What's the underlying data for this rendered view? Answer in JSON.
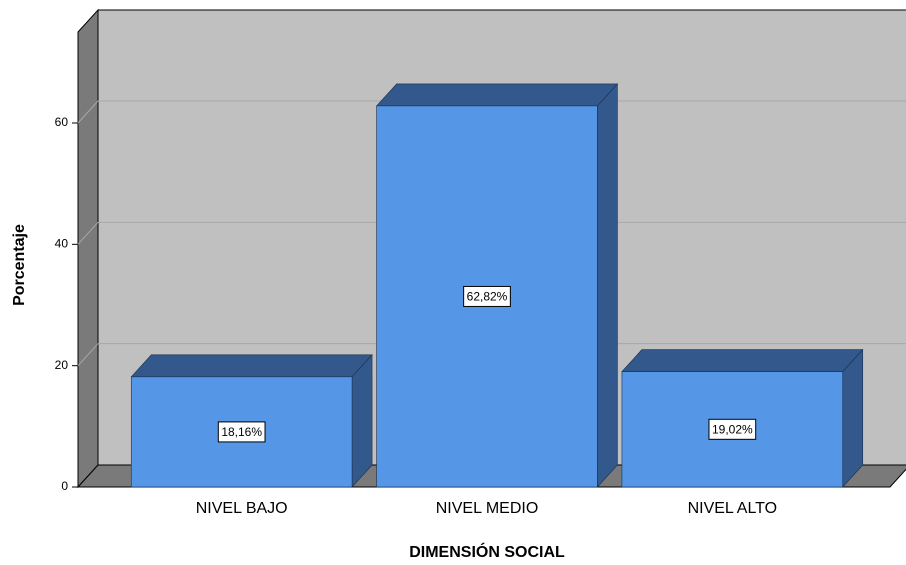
{
  "chart_data": {
    "type": "bar3d",
    "x_label": "DIMENSIÓN SOCIAL",
    "y_label": "Porcentaje",
    "categories": [
      "NIVEL BAJO",
      "NIVEL MEDIO",
      "NIVEL ALTO"
    ],
    "values": [
      18.16,
      62.82,
      19.02
    ],
    "value_labels": [
      "18,16%",
      "62,82%",
      "19,02%"
    ],
    "color": "#5596e6",
    "ylim": [
      0,
      75
    ],
    "yticks": [
      0,
      20,
      40,
      60
    ],
    "grid": true
  }
}
